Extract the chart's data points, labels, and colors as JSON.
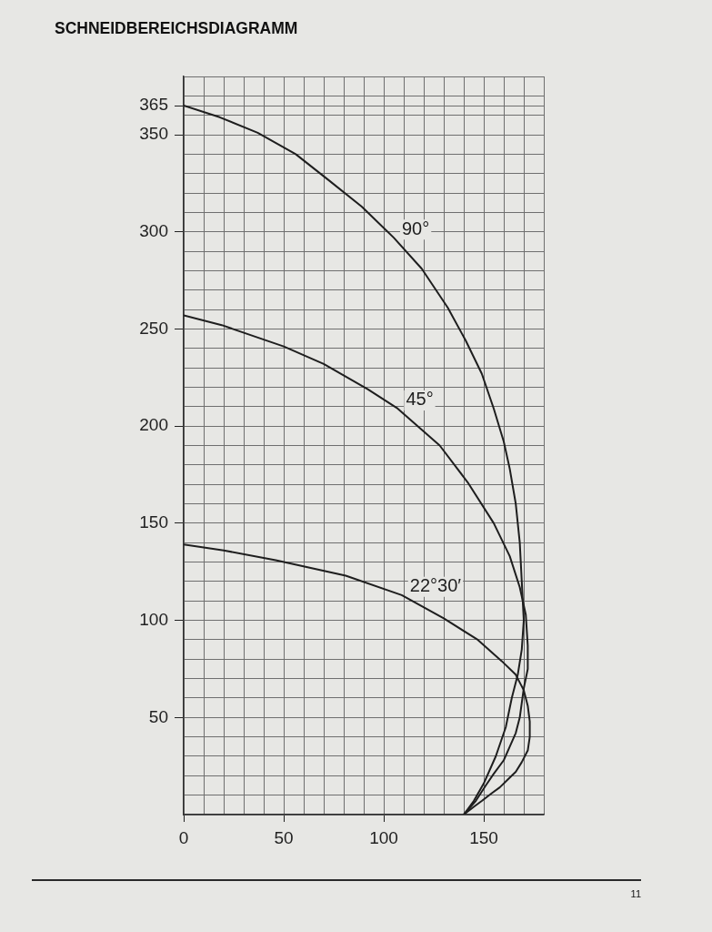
{
  "chart_data": {
    "type": "line",
    "title": "SCHNEIDBEREICHSDIAGRAMM",
    "annotations": [
      "11"
    ],
    "series": [
      {
        "name": "90°",
        "color": "#1e1e1e",
        "x": [
          0,
          18,
          37,
          56,
          72,
          89,
          105,
          119,
          132,
          141,
          149,
          155,
          160,
          163,
          166,
          168,
          169,
          170,
          169,
          167,
          164,
          161,
          156,
          150,
          145,
          140
        ],
        "values": [
          365,
          359,
          351,
          340,
          327,
          313,
          297,
          281,
          261,
          244,
          227,
          209,
          192,
          178,
          160,
          140,
          120,
          100,
          85,
          72,
          60,
          45,
          30,
          16,
          7,
          0
        ]
      },
      {
        "name": "45°",
        "color": "#1e1e1e",
        "x": [
          0,
          19,
          50,
          70,
          92,
          107,
          128,
          142,
          155,
          163,
          168,
          171,
          172,
          172,
          170,
          168,
          166,
          163,
          160,
          155,
          151,
          146,
          140
        ],
        "values": [
          257,
          252,
          241,
          232,
          219,
          209,
          190,
          171,
          150,
          133,
          117,
          103,
          87,
          75,
          65,
          50,
          42,
          35,
          28,
          21,
          15,
          7,
          0
        ]
      },
      {
        "name": "22°30′",
        "color": "#1e1e1e",
        "x": [
          0,
          20,
          46,
          81,
          109,
          130,
          147,
          159,
          166,
          170,
          172,
          173,
          173,
          172,
          169,
          166,
          162,
          158,
          154,
          149,
          145,
          140
        ],
        "values": [
          139,
          136,
          131,
          123,
          113,
          101,
          90,
          79,
          72,
          64,
          56,
          48,
          40,
          33,
          27,
          22,
          18,
          14,
          11,
          7,
          4,
          0
        ]
      }
    ],
    "xlim": [
      0,
      180
    ],
    "ylim": [
      0,
      380
    ],
    "xticks": [
      0,
      {
        "value": 10,
        "label": null
      },
      {
        "value": 20,
        "label": null
      },
      {
        "value": 30,
        "label": null
      },
      {
        "value": 40,
        "label": null
      },
      50,
      {
        "value": 60,
        "label": null
      },
      {
        "value": 70,
        "label": null
      },
      {
        "value": 80,
        "label": null
      },
      {
        "value": 90,
        "label": null
      },
      100,
      {
        "value": 110,
        "label": null
      },
      {
        "value": 120,
        "label": null
      },
      {
        "value": 130,
        "label": null
      },
      {
        "value": 140,
        "label": null
      },
      150,
      {
        "value": 160,
        "label": null
      },
      {
        "value": 170,
        "label": null
      },
      {
        "value": 180,
        "label": null
      }
    ],
    "yticks": [
      {
        "value": 0,
        "label": null
      },
      {
        "value": 10,
        "label": null
      },
      {
        "value": 20,
        "label": null
      },
      {
        "value": 30,
        "label": null
      },
      {
        "value": 40,
        "label": null
      },
      50,
      {
        "value": 60,
        "label": null
      },
      {
        "value": 70,
        "label": null
      },
      {
        "value": 80,
        "label": null
      },
      {
        "value": 90,
        "label": null
      },
      100,
      {
        "value": 110,
        "label": null
      },
      {
        "value": 120,
        "label": null
      },
      {
        "value": 130,
        "label": null
      },
      {
        "value": 140,
        "label": null
      },
      150,
      {
        "value": 160,
        "label": null
      },
      {
        "value": 170,
        "label": null
      },
      {
        "value": 180,
        "label": null
      },
      {
        "value": 190,
        "label": null
      },
      200,
      {
        "value": 210,
        "label": null
      },
      {
        "value": 220,
        "label": null
      },
      {
        "value": 230,
        "label": null
      },
      {
        "value": 240,
        "label": null
      },
      250,
      {
        "value": 260,
        "label": null
      },
      {
        "value": 270,
        "label": null
      },
      {
        "value": 280,
        "label": null
      },
      {
        "value": 290,
        "label": null
      },
      300,
      {
        "value": 310,
        "label": null
      },
      {
        "value": 320,
        "label": null
      },
      {
        "value": 330,
        "label": null
      },
      {
        "value": 340,
        "label": null
      },
      350,
      {
        "value": 360,
        "label": null
      },
      365,
      {
        "value": 370,
        "label": null
      },
      {
        "value": 380,
        "label": null
      }
    ],
    "grid": true,
    "legend": false,
    "marker": "none",
    "line_style": "solid"
  }
}
